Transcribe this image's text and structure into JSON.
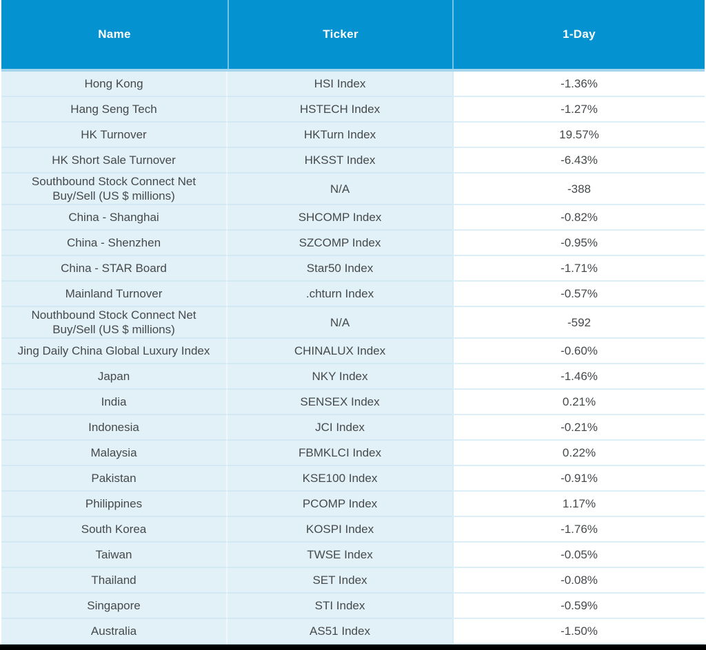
{
  "colors": {
    "header_bg": "#0592D0",
    "header_text": "#FFFFFF",
    "row_bg": "#E2F1F8",
    "value_column_bg": "#FFFFFF",
    "row_separator": "#D2E8F2",
    "header_underline": "#A6D6EC",
    "body_text": "#45494B",
    "bottom_bar": "#000000"
  },
  "chart_data": {
    "type": "table",
    "columns": [
      "Name",
      "Ticker",
      "1-Day"
    ],
    "rows": [
      [
        "Hong Kong",
        "HSI Index",
        "-1.36%"
      ],
      [
        "Hang Seng Tech",
        "HSTECH Index",
        "-1.27%"
      ],
      [
        "HK Turnover",
        "HKTurn Index",
        "19.57%"
      ],
      [
        "HK Short Sale Turnover",
        "HKSST Index",
        "-6.43%"
      ],
      [
        "Southbound Stock Connect Net\nBuy/Sell (US $ millions)",
        "N/A",
        "-388"
      ],
      [
        "China - Shanghai",
        "SHCOMP Index",
        "-0.82%"
      ],
      [
        "China - Shenzhen",
        "SZCOMP Index",
        "-0.95%"
      ],
      [
        "China - STAR Board",
        "Star50 Index",
        "-1.71%"
      ],
      [
        "Mainland Turnover",
        ".chturn Index",
        "-0.57%"
      ],
      [
        "Nouthbound Stock Connect Net\nBuy/Sell (US $ millions)",
        "N/A",
        "-592"
      ],
      [
        "Jing Daily China Global Luxury Index",
        "CHINALUX Index",
        "-0.60%"
      ],
      [
        "Japan",
        "NKY Index",
        "-1.46%"
      ],
      [
        "India",
        "SENSEX Index",
        "0.21%"
      ],
      [
        "Indonesia",
        "JCI Index",
        "-0.21%"
      ],
      [
        "Malaysia",
        "FBMKLCI Index",
        "0.22%"
      ],
      [
        "Pakistan",
        "KSE100 Index",
        "-0.91%"
      ],
      [
        "Philippines",
        "PCOMP Index",
        "1.17%"
      ],
      [
        "South Korea",
        "KOSPI Index",
        "-1.76%"
      ],
      [
        "Taiwan",
        "TWSE Index",
        "-0.05%"
      ],
      [
        "Thailand",
        "SET Index",
        "-0.08%"
      ],
      [
        "Singapore",
        "STI Index",
        "-0.59%"
      ],
      [
        "Australia",
        "AS51 Index",
        "-1.50%"
      ]
    ]
  }
}
